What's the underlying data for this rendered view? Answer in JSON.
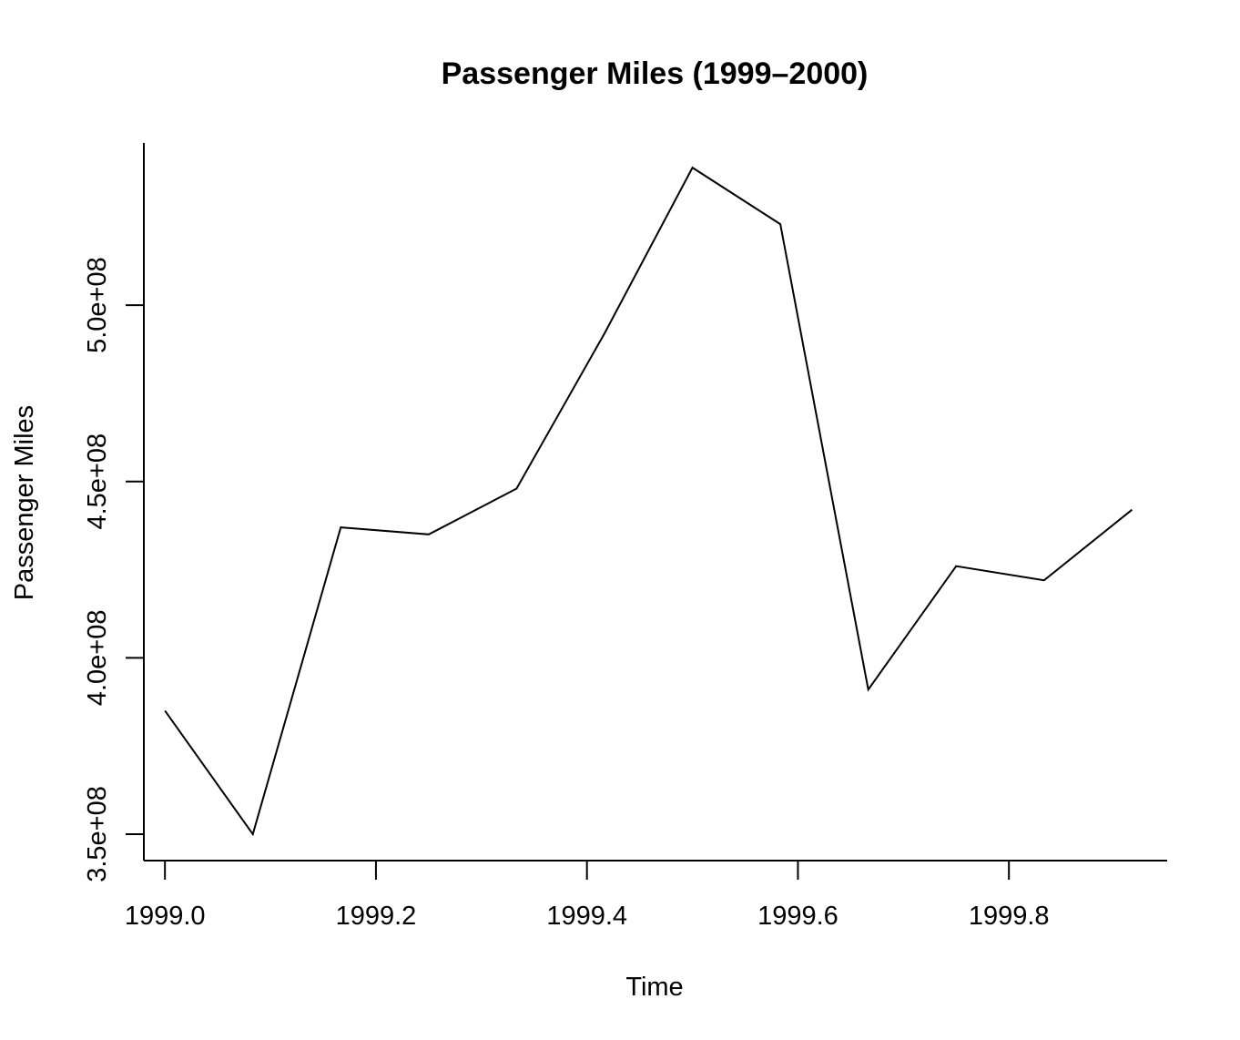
{
  "chart_data": {
    "type": "line",
    "title": "Passenger Miles (1999–2000)",
    "xlabel": "Time",
    "ylabel": "Passenger Miles",
    "x": [
      1999.0,
      1999.0833,
      1999.1667,
      1999.25,
      1999.3333,
      1999.4167,
      1999.5,
      1999.5833,
      1999.6667,
      1999.75,
      1999.8333,
      1999.9167
    ],
    "series": [
      {
        "values": [
          385000000,
          350000000,
          437000000,
          435000000,
          448000000,
          492000000,
          539000000,
          523000000,
          391000000,
          426000000,
          422000000,
          442000000
        ]
      }
    ],
    "xlim": [
      1998.98,
      1999.95
    ],
    "ylim": [
      342500000,
      546000000
    ],
    "x_ticks": [
      {
        "value": 1999.0,
        "label": "1999.0"
      },
      {
        "value": 1999.2,
        "label": "1999.2"
      },
      {
        "value": 1999.4,
        "label": "1999.4"
      },
      {
        "value": 1999.6,
        "label": "1999.6"
      },
      {
        "value": 1999.8,
        "label": "1999.8"
      }
    ],
    "y_ticks": [
      {
        "value": 350000000,
        "label": "3.5e+08"
      },
      {
        "value": 400000000,
        "label": "4.0e+08"
      },
      {
        "value": 450000000,
        "label": "4.5e+08"
      },
      {
        "value": 500000000,
        "label": "5.0e+08"
      }
    ],
    "grid": false,
    "line_color": "#000000"
  }
}
